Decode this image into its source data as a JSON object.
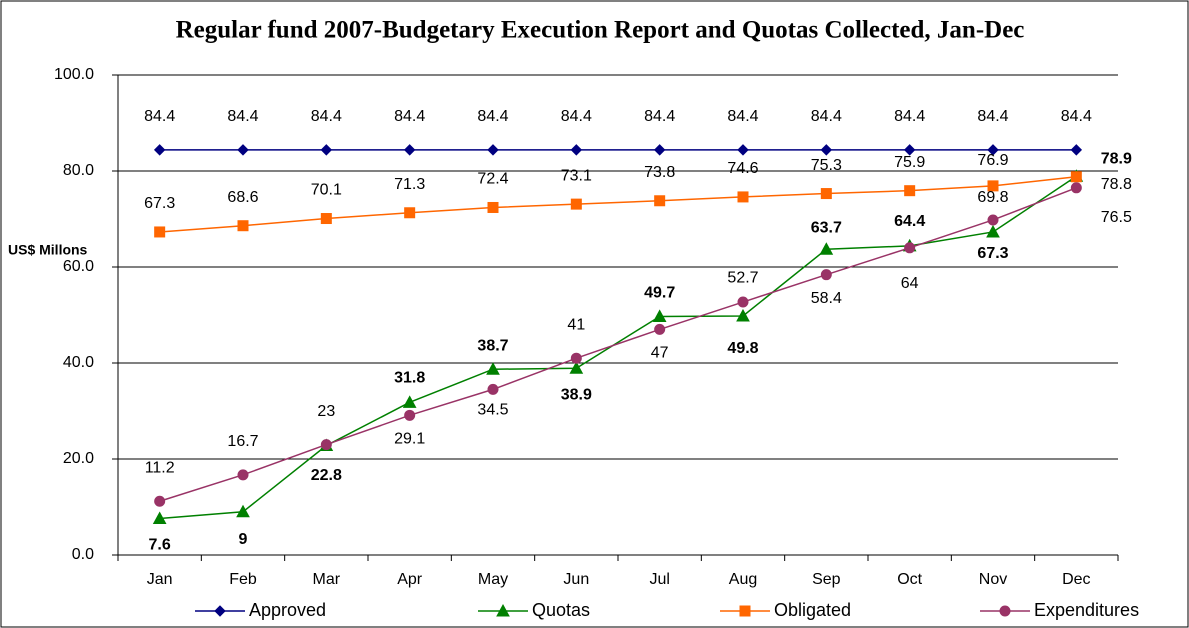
{
  "chart_data": {
    "type": "line",
    "title": "Regular fund 2007-Budgetary Execution Report and Quotas Collected, Jan-Dec",
    "y_label": "US$ Millons",
    "categories": [
      "Jan",
      "Feb",
      "Mar",
      "Apr",
      "May",
      "Jun",
      "Jul",
      "Aug",
      "Sep",
      "Oct",
      "Nov",
      "Dec"
    ],
    "series": [
      {
        "name": "Approved",
        "color": "#000080",
        "marker": "diamond",
        "values": [
          84.4,
          84.4,
          84.4,
          84.4,
          84.4,
          84.4,
          84.4,
          84.4,
          84.4,
          84.4,
          84.4,
          84.4
        ]
      },
      {
        "name": "Quotas",
        "color": "#008000",
        "marker": "triangle",
        "bold_labels": true,
        "values": [
          7.6,
          9,
          22.8,
          31.8,
          38.7,
          38.9,
          49.7,
          49.8,
          63.7,
          64.4,
          67.3,
          78.9
        ]
      },
      {
        "name": "Obligated",
        "color": "#FF6600",
        "marker": "square",
        "values": [
          67.3,
          68.6,
          70.1,
          71.3,
          72.4,
          73.1,
          73.8,
          74.6,
          75.3,
          75.9,
          76.9,
          78.8
        ]
      },
      {
        "name": "Expenditures",
        "color": "#993366",
        "marker": "circle",
        "values": [
          11.2,
          16.7,
          23,
          29.1,
          34.5,
          41,
          47,
          52.7,
          58.4,
          64,
          69.8,
          76.5
        ]
      }
    ],
    "ylim": [
      0,
      100
    ],
    "yticks": [
      {
        "value": 0,
        "label": "0.0"
      },
      {
        "value": 20,
        "label": "20.0"
      },
      {
        "value": 40,
        "label": "40.0"
      },
      {
        "value": 60,
        "label": "60.0"
      },
      {
        "value": 80,
        "label": "80.0"
      },
      {
        "value": 100,
        "label": "100.0"
      }
    ],
    "grid": true,
    "legend": "bottom"
  }
}
